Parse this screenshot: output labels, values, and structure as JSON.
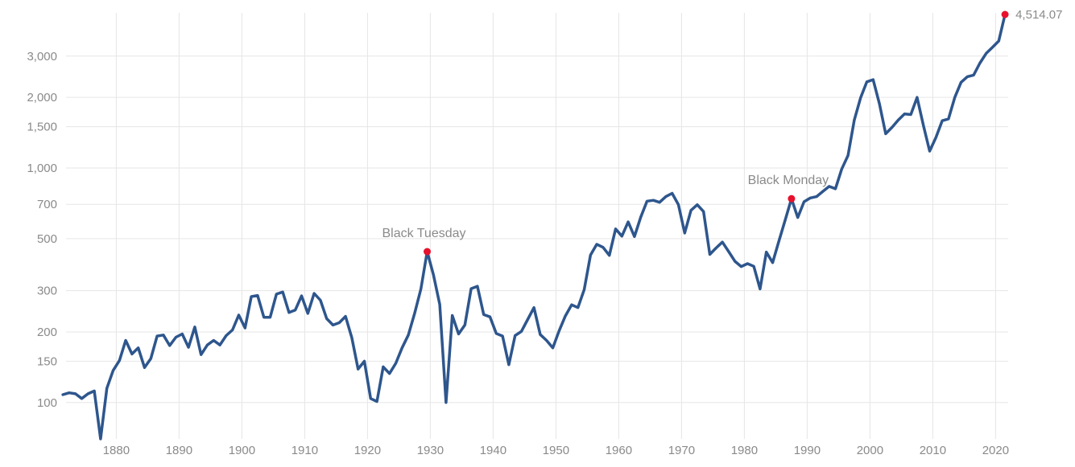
{
  "chart_data": {
    "type": "line",
    "title": "",
    "xlabel": "",
    "ylabel": "",
    "y_scale": "log",
    "grid": true,
    "xlim": [
      1872,
      2022
    ],
    "ylim": [
      70,
      4514.07
    ],
    "x_ticks": [
      1880,
      1890,
      1900,
      1910,
      1920,
      1930,
      1940,
      1950,
      1960,
      1970,
      1980,
      1990,
      2000,
      2010,
      2020
    ],
    "x_tick_labels": [
      "1880",
      "1890",
      "1900",
      "1910",
      "1920",
      "1930",
      "1940",
      "1950",
      "1960",
      "1970",
      "1980",
      "1990",
      "2000",
      "2010",
      "2020"
    ],
    "y_ticks": [
      100,
      150,
      200,
      300,
      500,
      700,
      1000,
      1500,
      2000,
      3000
    ],
    "y_tick_labels": [
      "100",
      "150",
      "200",
      "300",
      "500",
      "700",
      "1,000",
      "1,500",
      "2,000",
      "3,000"
    ],
    "series": [
      {
        "color": "#2e568d",
        "points": [
          [
            1871.5,
            108
          ],
          [
            1872.5,
            110
          ],
          [
            1873.5,
            109
          ],
          [
            1874.5,
            104
          ],
          [
            1875.5,
            109
          ],
          [
            1876.5,
            112
          ],
          [
            1877.5,
            70
          ],
          [
            1878.5,
            115
          ],
          [
            1879.5,
            137
          ],
          [
            1880.5,
            151
          ],
          [
            1881.5,
            184
          ],
          [
            1882.5,
            161
          ],
          [
            1883.5,
            171
          ],
          [
            1884.5,
            141
          ],
          [
            1885.5,
            154
          ],
          [
            1886.5,
            192
          ],
          [
            1887.5,
            194
          ],
          [
            1888.5,
            175
          ],
          [
            1889.5,
            190
          ],
          [
            1890.5,
            196
          ],
          [
            1891.5,
            172
          ],
          [
            1892.5,
            210
          ],
          [
            1893.5,
            160
          ],
          [
            1894.5,
            176
          ],
          [
            1895.5,
            184
          ],
          [
            1896.5,
            176
          ],
          [
            1897.5,
            193
          ],
          [
            1898.5,
            204
          ],
          [
            1899.5,
            236
          ],
          [
            1900.5,
            208
          ],
          [
            1901.5,
            283
          ],
          [
            1902.5,
            286
          ],
          [
            1903.5,
            231
          ],
          [
            1904.5,
            231
          ],
          [
            1905.5,
            290
          ],
          [
            1906.5,
            296
          ],
          [
            1907.5,
            242
          ],
          [
            1908.5,
            248
          ],
          [
            1909.5,
            285
          ],
          [
            1910.5,
            240
          ],
          [
            1911.5,
            292
          ],
          [
            1912.5,
            273
          ],
          [
            1913.5,
            228
          ],
          [
            1914.5,
            214
          ],
          [
            1915.5,
            219
          ],
          [
            1916.5,
            233
          ],
          [
            1917.5,
            189
          ],
          [
            1918.5,
            139
          ],
          [
            1919.5,
            150
          ],
          [
            1920.5,
            104
          ],
          [
            1921.5,
            101
          ],
          [
            1922.5,
            142
          ],
          [
            1923.5,
            133
          ],
          [
            1924.5,
            147
          ],
          [
            1925.5,
            171
          ],
          [
            1926.5,
            194
          ],
          [
            1927.5,
            240
          ],
          [
            1928.5,
            305
          ],
          [
            1929.5,
            440
          ],
          [
            1930.5,
            350
          ],
          [
            1931.5,
            262
          ],
          [
            1932.5,
            100
          ],
          [
            1933.5,
            235
          ],
          [
            1934.5,
            196
          ],
          [
            1935.5,
            214
          ],
          [
            1936.5,
            306
          ],
          [
            1937.5,
            313
          ],
          [
            1938.5,
            237
          ],
          [
            1939.5,
            232
          ],
          [
            1940.5,
            197
          ],
          [
            1941.5,
            192
          ],
          [
            1942.5,
            145
          ],
          [
            1943.5,
            193
          ],
          [
            1944.5,
            201
          ],
          [
            1945.5,
            226
          ],
          [
            1946.5,
            254
          ],
          [
            1947.5,
            195
          ],
          [
            1948.5,
            184
          ],
          [
            1949.5,
            171
          ],
          [
            1950.5,
            202
          ],
          [
            1951.5,
            234
          ],
          [
            1952.5,
            261
          ],
          [
            1953.5,
            254
          ],
          [
            1954.5,
            303
          ],
          [
            1955.5,
            425
          ],
          [
            1956.5,
            473
          ],
          [
            1957.5,
            459
          ],
          [
            1958.5,
            424
          ],
          [
            1959.5,
            550
          ],
          [
            1960.5,
            512
          ],
          [
            1961.5,
            589
          ],
          [
            1962.5,
            510
          ],
          [
            1963.5,
            617
          ],
          [
            1964.5,
            722
          ],
          [
            1965.5,
            728
          ],
          [
            1966.5,
            714
          ],
          [
            1967.5,
            755
          ],
          [
            1968.5,
            780
          ],
          [
            1969.5,
            698
          ],
          [
            1970.5,
            528
          ],
          [
            1971.5,
            660
          ],
          [
            1972.5,
            697
          ],
          [
            1973.5,
            652
          ],
          [
            1974.5,
            428
          ],
          [
            1975.5,
            456
          ],
          [
            1976.5,
            483
          ],
          [
            1977.5,
            440
          ],
          [
            1978.5,
            400
          ],
          [
            1979.5,
            380
          ],
          [
            1980.5,
            391
          ],
          [
            1981.5,
            381
          ],
          [
            1982.5,
            305
          ],
          [
            1983.5,
            438
          ],
          [
            1984.5,
            395
          ],
          [
            1985.5,
            488
          ],
          [
            1986.5,
            600
          ],
          [
            1987.5,
            740
          ],
          [
            1988.5,
            615
          ],
          [
            1989.5,
            718
          ],
          [
            1990.5,
            745
          ],
          [
            1991.5,
            755
          ],
          [
            1992.5,
            795
          ],
          [
            1993.5,
            835
          ],
          [
            1994.5,
            816
          ],
          [
            1995.5,
            990
          ],
          [
            1996.5,
            1130
          ],
          [
            1997.5,
            1600
          ],
          [
            1998.5,
            1990
          ],
          [
            1999.5,
            2330
          ],
          [
            2000.5,
            2380
          ],
          [
            2001.5,
            1880
          ],
          [
            2002.5,
            1400
          ],
          [
            2003.5,
            1490
          ],
          [
            2004.5,
            1600
          ],
          [
            2005.5,
            1700
          ],
          [
            2006.5,
            1690
          ],
          [
            2007.5,
            2000
          ],
          [
            2008.5,
            1520
          ],
          [
            2009.5,
            1180
          ],
          [
            2010.5,
            1350
          ],
          [
            2011.5,
            1590
          ],
          [
            2012.5,
            1620
          ],
          [
            2013.5,
            2000
          ],
          [
            2014.5,
            2320
          ],
          [
            2015.5,
            2450
          ],
          [
            2016.5,
            2490
          ],
          [
            2017.5,
            2800
          ],
          [
            2018.5,
            3080
          ],
          [
            2019.5,
            3270
          ],
          [
            2020.5,
            3480
          ],
          [
            2021.5,
            4514.07
          ]
        ]
      }
    ],
    "annotations": [
      {
        "label": "Black Tuesday",
        "x": 1929.5,
        "y": 440
      },
      {
        "label": "Black Monday",
        "x": 1987.5,
        "y": 740
      }
    ],
    "end_point": {
      "label": "4,514.07",
      "x": 2021.5,
      "y": 4514.07
    },
    "highlight_color": "#e8112d"
  }
}
